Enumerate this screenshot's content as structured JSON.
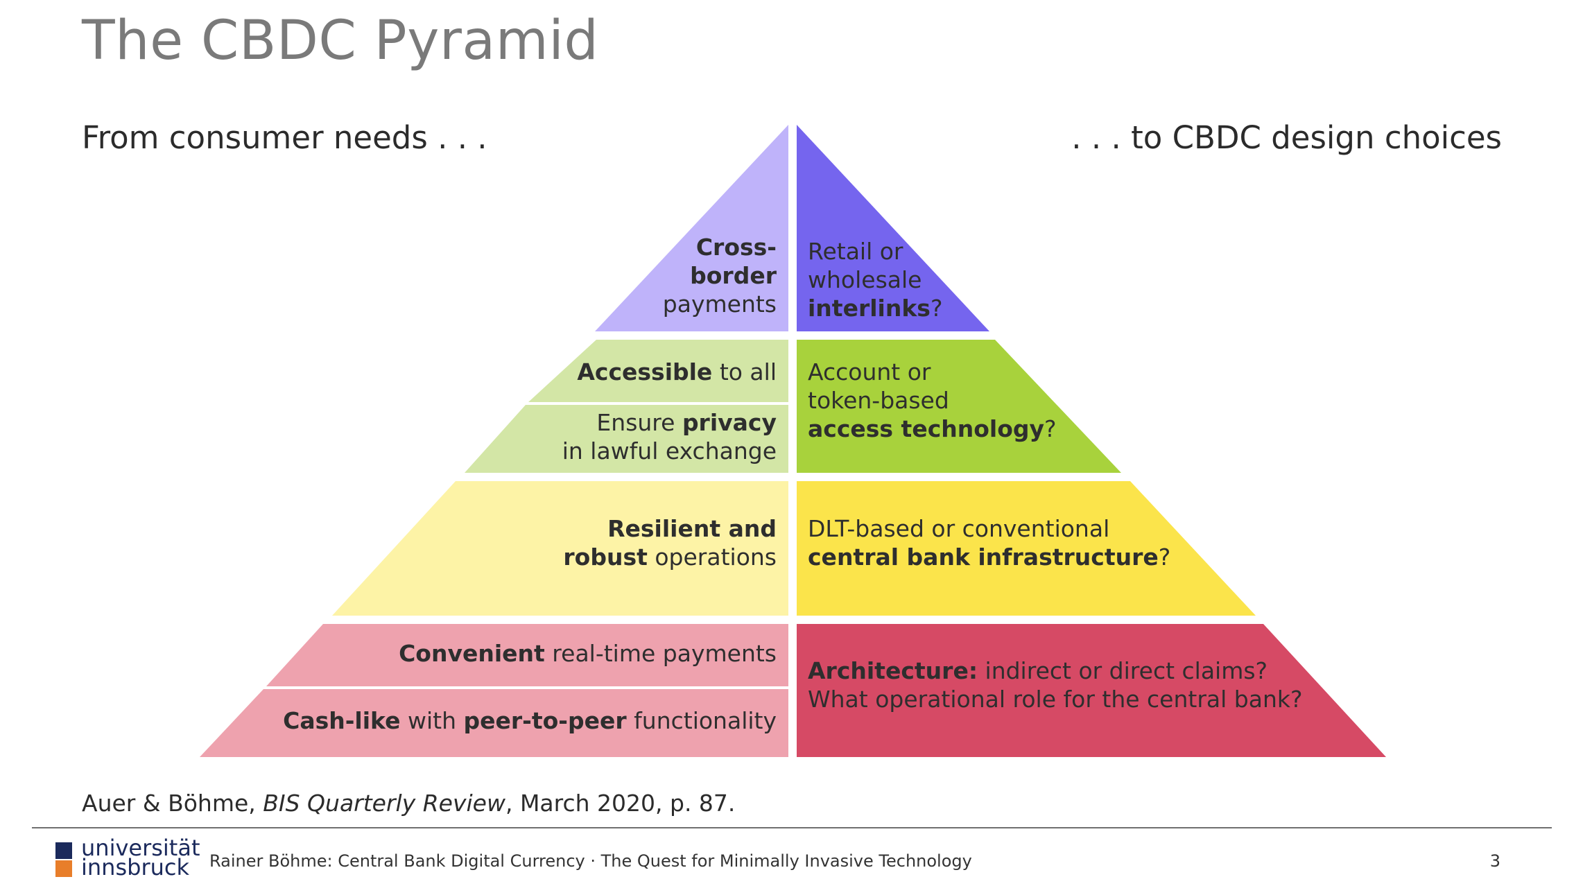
{
  "slide": {
    "title": "The CBDC Pyramid",
    "heading_left": "From consumer needs . . .",
    "heading_right": ". . . to CBDC design choices"
  },
  "pyramid": {
    "tier1": {
      "needs": {
        "b1": "Cross-",
        "b2": "border",
        "t3": "payments"
      },
      "choice": {
        "t1": "Retail or",
        "t2": "wholesale",
        "b3": "interlinks",
        "q": "?"
      }
    },
    "tier2": {
      "needs_a": {
        "b": "Accessible",
        "t": " to all"
      },
      "needs_b": {
        "t1": "Ensure ",
        "b1": "privacy",
        "t2": "in lawful exchange"
      },
      "choice": {
        "t1": "Account or",
        "t2": "token-based",
        "b3": "access technology",
        "q": "?"
      }
    },
    "tier3": {
      "needs": {
        "b1": "Resilient and",
        "b2": "robust",
        "t2": " operations"
      },
      "choice": {
        "t1": "DLT-based or conventional",
        "b2": "central bank infrastructure",
        "q": "?"
      }
    },
    "tier4": {
      "needs_a": {
        "b": "Convenient",
        "t": " real-time payments"
      },
      "needs_b": {
        "b1": "Cash-like",
        "t1": " with ",
        "b2": "peer-to-peer",
        "t2": " functionality"
      },
      "choice": {
        "b1": "Architecture:",
        "t1": " indirect or direct claims?",
        "t2": "What operational role for the central bank?"
      }
    },
    "colors": {
      "tier1_left": "#bfb3fa",
      "tier1_right": "#7565ee",
      "tier2_left": "#d3e6a6",
      "tier2_right": "#a8d23c",
      "tier3_left": "#fdf3a6",
      "tier3_right": "#fbe44b",
      "tier4_left": "#eea2ae",
      "tier4_right": "#d64a65"
    }
  },
  "citation": {
    "authors": "Auer & Böhme, ",
    "journal": "BIS Quarterly Review",
    "rest": ", March 2020, p. 87."
  },
  "footer": {
    "logo_line1": "universität",
    "logo_line2": "innsbruck",
    "text": "Rainer Böhme: Central Bank Digital Currency · The Quest for Minimally Invasive Technology",
    "page": "3"
  }
}
